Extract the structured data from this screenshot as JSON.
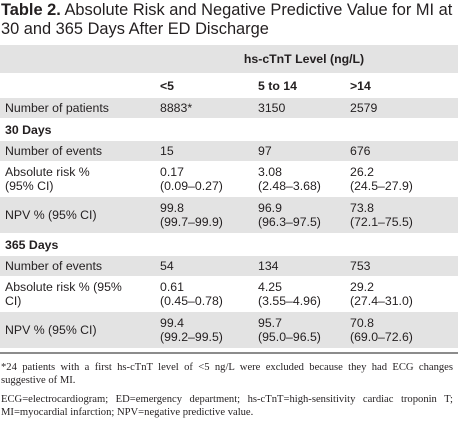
{
  "title": {
    "label": "Table 2.",
    "text": " Absolute Risk and Negative Predictive Value for MI at 30 and 365 Days After ED Discharge"
  },
  "header": {
    "group": "hs-cTnT Level (ng/L)",
    "cols": [
      "<5",
      "5 to 14",
      ">14"
    ]
  },
  "patients": {
    "label": "Number of patients",
    "values": [
      "8883*",
      "3150",
      "2579"
    ]
  },
  "sections": [
    {
      "title": "30 Days",
      "events": {
        "label": "Number of events",
        "values": [
          "15",
          "97",
          "676"
        ]
      },
      "risk": {
        "label": "Absolute risk %",
        "label2": "(95% CI)",
        "values": [
          "0.17",
          "3.08",
          "26.2"
        ],
        "ci": [
          "(0.09–0.27)",
          "(2.48–3.68)",
          "(24.5–27.9)"
        ]
      },
      "npv": {
        "label": "NPV % (95% CI)",
        "values": [
          "99.8",
          "96.9",
          "73.8"
        ],
        "ci": [
          "(99.7–99.9)",
          "(96.3–97.5)",
          "(72.1–75.5)"
        ]
      }
    },
    {
      "title": "365 Days",
      "events": {
        "label": "Number of events",
        "values": [
          "54",
          "134",
          "753"
        ]
      },
      "risk": {
        "label": "Absolute risk % (95%",
        "label2": "CI)",
        "values": [
          "0.61",
          "4.25",
          "29.2"
        ],
        "ci": [
          "(0.45–0.78)",
          "(3.55–4.96)",
          "(27.4–31.0)"
        ]
      },
      "npv": {
        "label": "NPV % (95% CI)",
        "values": [
          "99.4",
          "95.7",
          "70.8"
        ],
        "ci": [
          "(99.2–99.5)",
          "(95.0–96.5)",
          "(69.0–72.6)"
        ]
      }
    }
  ],
  "footnotes": {
    "asterisk": "*24 patients with a first hs-cTnT level of <5 ng/L were excluded because they had ECG changes suggestive of MI.",
    "abbreviations": "ECG=electrocardiogram; ED=emergency department; hs-cTnT=high-sensitivity cardiac troponin T; MI=myocardial infarction; NPV=negative predictive value."
  }
}
